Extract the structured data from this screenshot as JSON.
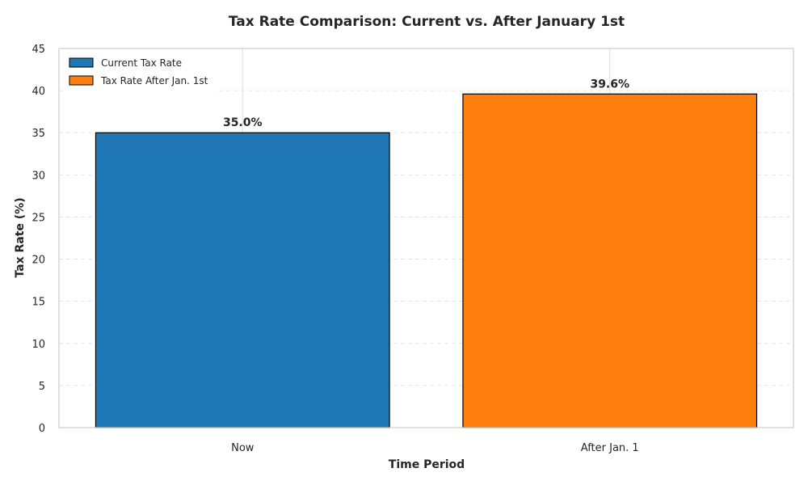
{
  "chart_data": {
    "type": "bar",
    "title": "Tax Rate Comparison: Current vs. After January 1st",
    "xlabel": "Time Period",
    "ylabel": "Tax Rate (%)",
    "categories": [
      "Now",
      "After Jan. 1"
    ],
    "values": [
      35.0,
      39.6
    ],
    "value_labels": [
      "35.0%",
      "39.6%"
    ],
    "ylim": [
      0,
      45
    ],
    "yticks": [
      0,
      5,
      10,
      15,
      20,
      25,
      30,
      35,
      40,
      45
    ],
    "legend": {
      "position": "top-left",
      "entries": [
        "Current Tax Rate",
        "Tax Rate After Jan. 1st"
      ]
    },
    "colors": [
      "#1f77b4",
      "#ff7f0e"
    ],
    "grid": "y-dashed"
  }
}
